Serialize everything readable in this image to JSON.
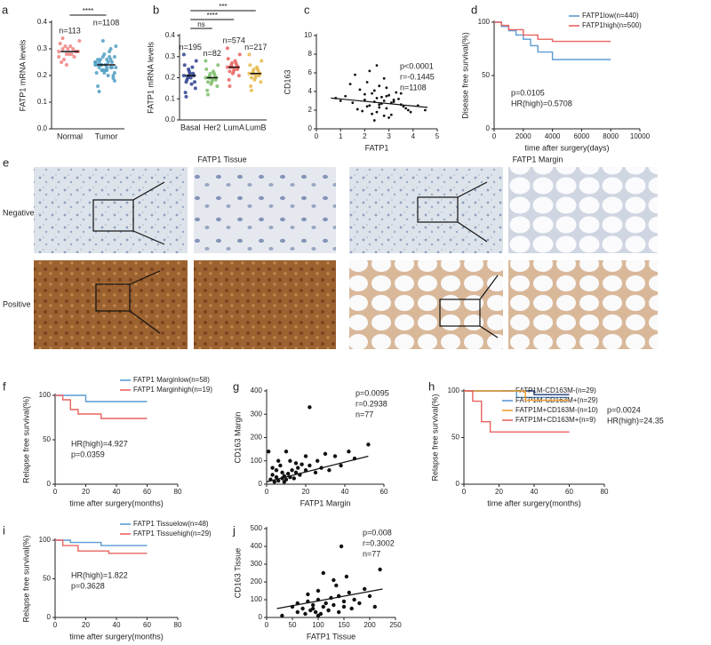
{
  "chart_data": [
    {
      "type": "strip",
      "label": "a",
      "ylabel": "FATP1 mRNA levels",
      "categories": [
        "Normal",
        "Tumor"
      ],
      "colors": [
        "#f08080",
        "#4f9ec4"
      ],
      "values": [
        [
          0.29,
          0.3,
          0.28,
          0.31,
          0.27,
          0.29,
          0.32,
          0.26,
          0.3,
          0.28,
          0.29,
          0.33,
          0.25,
          0.31,
          0.28,
          0.3,
          0.29,
          0.27,
          0.34,
          0.24
        ],
        [
          0.24,
          0.25,
          0.22,
          0.26,
          0.23,
          0.27,
          0.21,
          0.24,
          0.28,
          0.2,
          0.25,
          0.23,
          0.26,
          0.22,
          0.24,
          0.29,
          0.19,
          0.25,
          0.23,
          0.27,
          0.22,
          0.3,
          0.18,
          0.24,
          0.26,
          0.21,
          0.25,
          0.23,
          0.31,
          0.16,
          0.24,
          0.22,
          0.27,
          0.2,
          0.25,
          0.14,
          0.33,
          0.23,
          0.26,
          0.21
        ]
      ],
      "means": [
        0.29,
        0.24
      ],
      "n_labels": [
        "n=113",
        "n=1108"
      ],
      "significance": [
        "****"
      ],
      "ylim": [
        0,
        0.4
      ],
      "yticks": [
        {
          "value": 0,
          "label": "0.0"
        },
        0.1,
        0.2,
        0.3,
        0.4
      ]
    },
    {
      "type": "strip",
      "label": "b",
      "ylabel": "FATP1 mRNA levels",
      "categories": [
        "Basal",
        "Her2",
        "LumA",
        "LumB"
      ],
      "colors": [
        "#2f3f8f",
        "#7cbd6b",
        "#e8645f",
        "#e6b84a"
      ],
      "values": [
        [
          0.21,
          0.18,
          0.24,
          0.2,
          0.22,
          0.15,
          0.26,
          0.19,
          0.23,
          0.17,
          0.21,
          0.28,
          0.13,
          0.2,
          0.22,
          0.25,
          0.18,
          0.31,
          0.11,
          0.21
        ],
        [
          0.2,
          0.18,
          0.22,
          0.19,
          0.21,
          0.16,
          0.24,
          0.2,
          0.17,
          0.23,
          0.19,
          0.26,
          0.14,
          0.21,
          0.18,
          0.22,
          0.2,
          0.28,
          0.12,
          0.2
        ],
        [
          0.25,
          0.23,
          0.27,
          0.24,
          0.26,
          0.21,
          0.29,
          0.25,
          0.22,
          0.28,
          0.24,
          0.31,
          0.19,
          0.26,
          0.23,
          0.27,
          0.25,
          0.34,
          0.16,
          0.25
        ],
        [
          0.22,
          0.2,
          0.24,
          0.21,
          0.23,
          0.18,
          0.26,
          0.22,
          0.19,
          0.25,
          0.21,
          0.28,
          0.16,
          0.23,
          0.2,
          0.24,
          0.22,
          0.31,
          0.14,
          0.22
        ]
      ],
      "means": [
        0.21,
        0.2,
        0.25,
        0.22
      ],
      "n_labels": [
        "n=195",
        "n=82",
        "n=574",
        "n=217"
      ],
      "significance": [
        "ns",
        "****",
        "***"
      ],
      "ylim": [
        0,
        0.4
      ],
      "yticks": [
        {
          "value": 0,
          "label": "0.0"
        },
        0.1,
        0.2,
        0.3,
        0.4
      ]
    },
    {
      "type": "scatter",
      "label": "c",
      "xlabel": "FATP1",
      "ylabel": "CD163",
      "color": "#111",
      "x": [
        1.2,
        1.5,
        1.8,
        2.0,
        2.1,
        2.2,
        2.3,
        2.4,
        2.5,
        2.5,
        2.6,
        2.7,
        2.8,
        2.9,
        3.0,
        3.1,
        3.2,
        3.4,
        3.6,
        3.8,
        1.0,
        1.4,
        1.9,
        2.2,
        2.4,
        2.6,
        2.8,
        3.0,
        3.3,
        3.5,
        1.7,
        2.0,
        2.3,
        2.7,
        2.9,
        3.1,
        3.9,
        4.2,
        0.8,
        4.5,
        1.6,
        2.1,
        2.5,
        2.8,
        3.2,
        3.5,
        2.4,
        2.6,
        2.9,
        3.7
      ],
      "y": [
        3.5,
        2.8,
        4.2,
        3.1,
        5.0,
        2.5,
        3.8,
        2.9,
        3.3,
        1.8,
        4.6,
        2.7,
        3.0,
        2.2,
        3.6,
        1.5,
        2.9,
        3.2,
        2.4,
        2.0,
        3.0,
        4.8,
        1.9,
        6.2,
        4.1,
        2.3,
        5.4,
        1.2,
        3.9,
        2.6,
        2.1,
        3.7,
        1.6,
        3.4,
        4.4,
        2.8,
        1.8,
        2.5,
        3.3,
        2.0,
        5.8,
        2.4,
        6.8,
        1.4,
        3.1,
        3.8,
        0.9,
        2.6,
        3.5,
        2.2
      ],
      "fit": {
        "x": [
          0.6,
          4.6
        ],
        "y": [
          3.3,
          2.3
        ]
      },
      "annotations": [
        "p<0.0001",
        "r=-0.1445",
        "n=1108"
      ],
      "xlim": [
        0,
        5
      ],
      "xticks": [
        0,
        1,
        2,
        3,
        4,
        5
      ],
      "ylim": [
        0,
        10
      ],
      "yticks": [
        0,
        2,
        4,
        6,
        8,
        10
      ]
    },
    {
      "type": "line",
      "label": "d",
      "xlabel": "time after surgery(days)",
      "ylabel": "Disease free survival(%)",
      "series": [
        {
          "name": "FATP1low(n=440)",
          "color": "#5b9bd5",
          "x": [
            0,
            500,
            500,
            1000,
            1000,
            1500,
            1500,
            2000,
            2000,
            2500,
            2500,
            3000,
            3000,
            4000,
            4000,
            8000
          ],
          "values": [
            100,
            100,
            96,
            96,
            92,
            92,
            88,
            88,
            84,
            84,
            78,
            78,
            72,
            72,
            65,
            65
          ]
        },
        {
          "name": "FATP1high(n=500)",
          "color": "#e8645f",
          "x": [
            0,
            500,
            500,
            1000,
            1000,
            2000,
            2000,
            3000,
            3000,
            4000,
            4000,
            8000
          ],
          "values": [
            100,
            100,
            97,
            97,
            93,
            93,
            88,
            88,
            84,
            84,
            82,
            82
          ]
        }
      ],
      "annotations": [
        "p=0.0105",
        "HR(high)=0.5708"
      ],
      "xlim": [
        0,
        10000
      ],
      "xticks": [
        0,
        2000,
        4000,
        6000,
        8000,
        10000
      ],
      "ylim": [
        0,
        100
      ],
      "yticks": [
        0,
        50,
        100
      ]
    },
    {
      "type": "line",
      "label": "f",
      "xlabel": "time after surgery(months)",
      "ylabel": "Relapse free survival(%)",
      "series": [
        {
          "name": "FATP1 Marginlow(n=58)",
          "color": "#5b9bd5",
          "x": [
            0,
            20,
            20,
            60
          ],
          "values": [
            100,
            100,
            93,
            93
          ]
        },
        {
          "name": "FATP1 Marginhigh(n=19)",
          "color": "#e8645f",
          "x": [
            0,
            5,
            5,
            10,
            10,
            15,
            15,
            30,
            30,
            60
          ],
          "values": [
            100,
            100,
            95,
            95,
            84,
            84,
            79,
            79,
            74,
            74
          ]
        }
      ],
      "annotations": [
        "HR(high)=4.927",
        "p=0.0359"
      ],
      "xlim": [
        0,
        80
      ],
      "xticks": [
        0,
        20,
        40,
        60,
        80
      ],
      "ylim": [
        0,
        100
      ],
      "yticks": [
        0,
        50,
        100
      ]
    },
    {
      "type": "scatter",
      "label": "g",
      "xlabel": "FATP1 Margin",
      "ylabel": "CD163 Margin",
      "color": "#111",
      "x": [
        2,
        3,
        4,
        5,
        5,
        6,
        7,
        8,
        8,
        9,
        10,
        10,
        11,
        12,
        12,
        13,
        14,
        15,
        15,
        16,
        17,
        18,
        20,
        20,
        22,
        22,
        25,
        26,
        28,
        30,
        32,
        35,
        38,
        42,
        45,
        52,
        1,
        3,
        6,
        9
      ],
      "y": [
        20,
        40,
        10,
        60,
        30,
        15,
        80,
        25,
        50,
        35,
        140,
        20,
        45,
        100,
        30,
        60,
        25,
        90,
        50,
        70,
        40,
        85,
        60,
        120,
        330,
        80,
        50,
        100,
        70,
        130,
        60,
        120,
        80,
        140,
        110,
        170,
        140,
        70,
        100,
        10
      ],
      "fit": {
        "x": [
          0,
          52
        ],
        "y": [
          10,
          120
        ]
      },
      "annotations": [
        "p=0.0095",
        "r=0.2938",
        "n=77"
      ],
      "xlim": [
        0,
        60
      ],
      "xticks": [
        0,
        20,
        40,
        60
      ],
      "ylim": [
        0,
        400
      ],
      "yticks": [
        0,
        100,
        200,
        300,
        400
      ]
    },
    {
      "type": "line",
      "label": "h",
      "xlabel": "time after surgery(months)",
      "ylabel": "Relapse free survival(%)",
      "series": [
        {
          "name": "FATP1M-CD163M-(n=29)",
          "color": "#1f3a7a",
          "x": [
            0,
            40,
            40,
            60
          ],
          "values": [
            100,
            100,
            96,
            96
          ]
        },
        {
          "name": "FATP1M-CD163M+(n=29)",
          "color": "#5b9bd5",
          "x": [
            0,
            30,
            30,
            60
          ],
          "values": [
            100,
            100,
            93,
            93
          ]
        },
        {
          "name": "FATP1M+CD163M-(n=10)",
          "color": "#f0a030",
          "x": [
            0,
            35,
            35,
            60
          ],
          "values": [
            100,
            100,
            90,
            90
          ]
        },
        {
          "name": "FATP1M+CD163M+(n=9)",
          "color": "#e8645f",
          "x": [
            0,
            5,
            5,
            10,
            10,
            15,
            15,
            60
          ],
          "values": [
            100,
            100,
            89,
            89,
            67,
            67,
            56,
            56
          ]
        }
      ],
      "annotations": [
        "p=0.0024",
        "HR(high)=24.35"
      ],
      "xlim": [
        0,
        80
      ],
      "xticks": [
        0,
        20,
        40,
        60,
        80
      ],
      "ylim": [
        0,
        100
      ],
      "yticks": [
        0,
        50,
        100
      ]
    },
    {
      "type": "line",
      "label": "i",
      "xlabel": "time after surgery(months)",
      "ylabel": "Relapse free survival(%)",
      "series": [
        {
          "name": "FATP1 Tissuelow(n=48)",
          "color": "#5b9bd5",
          "x": [
            0,
            10,
            10,
            30,
            30,
            60
          ],
          "values": [
            100,
            100,
            97,
            97,
            93,
            93
          ]
        },
        {
          "name": "FATP1 Tissuehigh(n=29)",
          "color": "#e8645f",
          "x": [
            0,
            5,
            5,
            15,
            15,
            35,
            35,
            60
          ],
          "values": [
            100,
            100,
            93,
            93,
            86,
            86,
            83,
            83
          ]
        }
      ],
      "annotations": [
        "HR(high)=1.822",
        "p=0.3628"
      ],
      "xlim": [
        0,
        80
      ],
      "xticks": [
        0,
        20,
        40,
        60,
        80
      ],
      "ylim": [
        0,
        100
      ],
      "yticks": [
        0,
        50,
        100
      ]
    },
    {
      "type": "scatter",
      "label": "j",
      "xlabel": "FATP1 Tissue",
      "ylabel": "CD163 Tissue",
      "color": "#111",
      "x": [
        30,
        50,
        60,
        70,
        75,
        80,
        85,
        90,
        95,
        100,
        100,
        105,
        110,
        110,
        115,
        120,
        125,
        130,
        135,
        140,
        140,
        145,
        150,
        150,
        155,
        160,
        165,
        170,
        180,
        190,
        200,
        210,
        220,
        80,
        100,
        130,
        90,
        60,
        120,
        140
      ],
      "y": [
        10,
        60,
        30,
        50,
        20,
        90,
        40,
        70,
        30,
        100,
        150,
        20,
        60,
        250,
        80,
        40,
        110,
        70,
        180,
        30,
        120,
        400,
        90,
        60,
        230,
        140,
        50,
        100,
        80,
        160,
        120,
        60,
        270,
        130,
        10,
        210,
        50,
        80,
        40,
        120
      ],
      "fit": {
        "x": [
          20,
          225
        ],
        "y": [
          50,
          160
        ]
      },
      "annotations": [
        "p=0.008",
        "r=0.3002",
        "n=77"
      ],
      "xlim": [
        0,
        250
      ],
      "xticks": [
        0,
        50,
        100,
        150,
        200,
        250
      ],
      "ylim": [
        0,
        500
      ],
      "yticks": [
        0,
        100,
        200,
        300,
        400,
        500
      ]
    }
  ],
  "panel_e": {
    "label": "e",
    "column_titles": [
      "FATP1 Tissue",
      "FATP1 Margin"
    ],
    "row_labels": [
      "Negative",
      "Positive"
    ]
  }
}
